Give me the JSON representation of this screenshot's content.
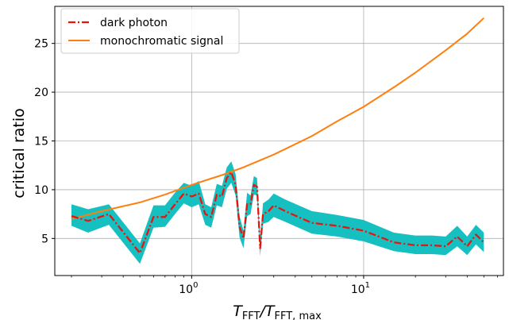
{
  "chart_data": {
    "type": "line",
    "xscale": "log",
    "xlim": [
      0.16,
      65
    ],
    "ylim": [
      1.2,
      28.8
    ],
    "xlabel": {
      "main": "T",
      "sub1": "FFT",
      "sep": "/T",
      "sub2": "FFT, max"
    },
    "ylabel": "critical ratio",
    "grid": true,
    "legend_position": "top-left",
    "x_ticks": [
      {
        "value": 1,
        "base": "10",
        "exp": "0"
      },
      {
        "value": 10,
        "base": "10",
        "exp": "1"
      }
    ],
    "y_ticks": [
      {
        "value": 5,
        "label": "5"
      },
      {
        "value": 10,
        "label": "10"
      },
      {
        "value": 15,
        "label": "15"
      },
      {
        "value": 20,
        "label": "20"
      },
      {
        "value": 25,
        "label": "25"
      }
    ],
    "series": [
      {
        "name": "dark photon",
        "style": "dashdot",
        "color": "#e8150f",
        "band_color": "#17c0c0",
        "x": [
          0.2,
          0.25,
          0.33,
          0.5,
          0.6,
          0.7,
          0.8,
          0.9,
          1.0,
          1.1,
          1.2,
          1.3,
          1.4,
          1.5,
          1.6,
          1.7,
          1.8,
          1.9,
          2.0,
          2.1,
          2.2,
          2.3,
          2.4,
          2.5,
          2.6,
          2.8,
          3.0,
          3.5,
          5.0,
          7.0,
          10,
          15,
          20,
          25,
          30,
          35,
          40,
          45,
          50
        ],
        "y": [
          7.3,
          6.8,
          7.5,
          3.5,
          7.2,
          7.2,
          8.5,
          9.6,
          9.3,
          9.6,
          7.5,
          7.2,
          9.5,
          9.3,
          11.2,
          11.8,
          10.5,
          6.2,
          5.0,
          8.5,
          8.5,
          10.5,
          10.3,
          4.0,
          7.5,
          7.8,
          8.4,
          7.8,
          6.6,
          6.3,
          5.8,
          4.6,
          4.3,
          4.3,
          4.2,
          5.2,
          4.2,
          5.4,
          4.6
        ],
        "upper": [
          8.5,
          8.0,
          8.5,
          4.5,
          8.4,
          8.4,
          9.7,
          10.7,
          10.4,
          10.9,
          8.5,
          8.2,
          10.6,
          10.4,
          12.3,
          12.9,
          11.6,
          7.3,
          5.8,
          9.7,
          9.4,
          11.4,
          11.2,
          4.9,
          8.6,
          9.0,
          9.6,
          9.0,
          7.8,
          7.4,
          6.9,
          5.6,
          5.3,
          5.3,
          5.2,
          6.3,
          5.2,
          6.4,
          5.6
        ],
        "lower": [
          6.3,
          5.6,
          6.4,
          2.4,
          6.1,
          6.2,
          7.5,
          8.6,
          8.2,
          8.5,
          6.4,
          6.1,
          8.4,
          8.2,
          10.1,
          10.7,
          9.4,
          5.1,
          4.0,
          7.3,
          7.5,
          9.5,
          9.4,
          3.2,
          6.5,
          6.7,
          7.2,
          6.7,
          5.5,
          5.2,
          4.7,
          3.7,
          3.4,
          3.4,
          3.3,
          4.2,
          3.3,
          4.4,
          3.6
        ]
      },
      {
        "name": "monochromatic signal",
        "style": "solid",
        "color": "#ff7f0e",
        "x": [
          0.2,
          0.3,
          0.5,
          0.7,
          1.0,
          1.5,
          2.0,
          3.0,
          5.0,
          7.0,
          10,
          15,
          20,
          30,
          40,
          50
        ],
        "y": [
          7.0,
          7.8,
          8.7,
          9.5,
          10.5,
          11.5,
          12.3,
          13.6,
          15.5,
          17.0,
          18.5,
          20.5,
          22.0,
          24.3,
          26.0,
          27.6
        ]
      }
    ]
  }
}
